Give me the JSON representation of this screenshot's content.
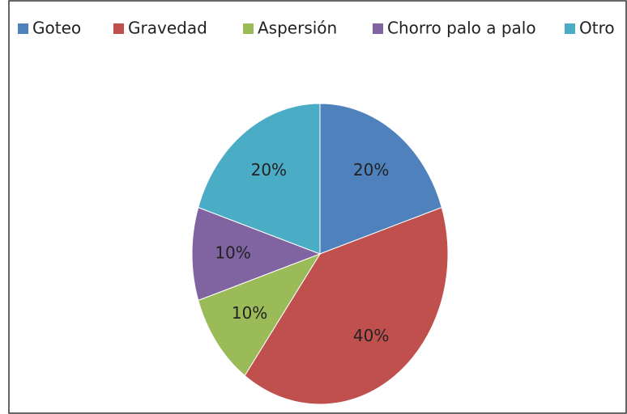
{
  "chart_data": {
    "type": "pie",
    "categories": [
      "Goteo",
      "Gravedad",
      "Aspersión",
      "Chorro palo a palo",
      "Otro"
    ],
    "values": [
      20,
      40,
      10,
      10,
      20
    ],
    "value_labels": [
      "20%",
      "40%",
      "10%",
      "10%",
      "20%"
    ],
    "colors": [
      "#4f81bd",
      "#c0504d",
      "#9bbb59",
      "#8064a2",
      "#4bacc6"
    ],
    "legend": "top"
  }
}
